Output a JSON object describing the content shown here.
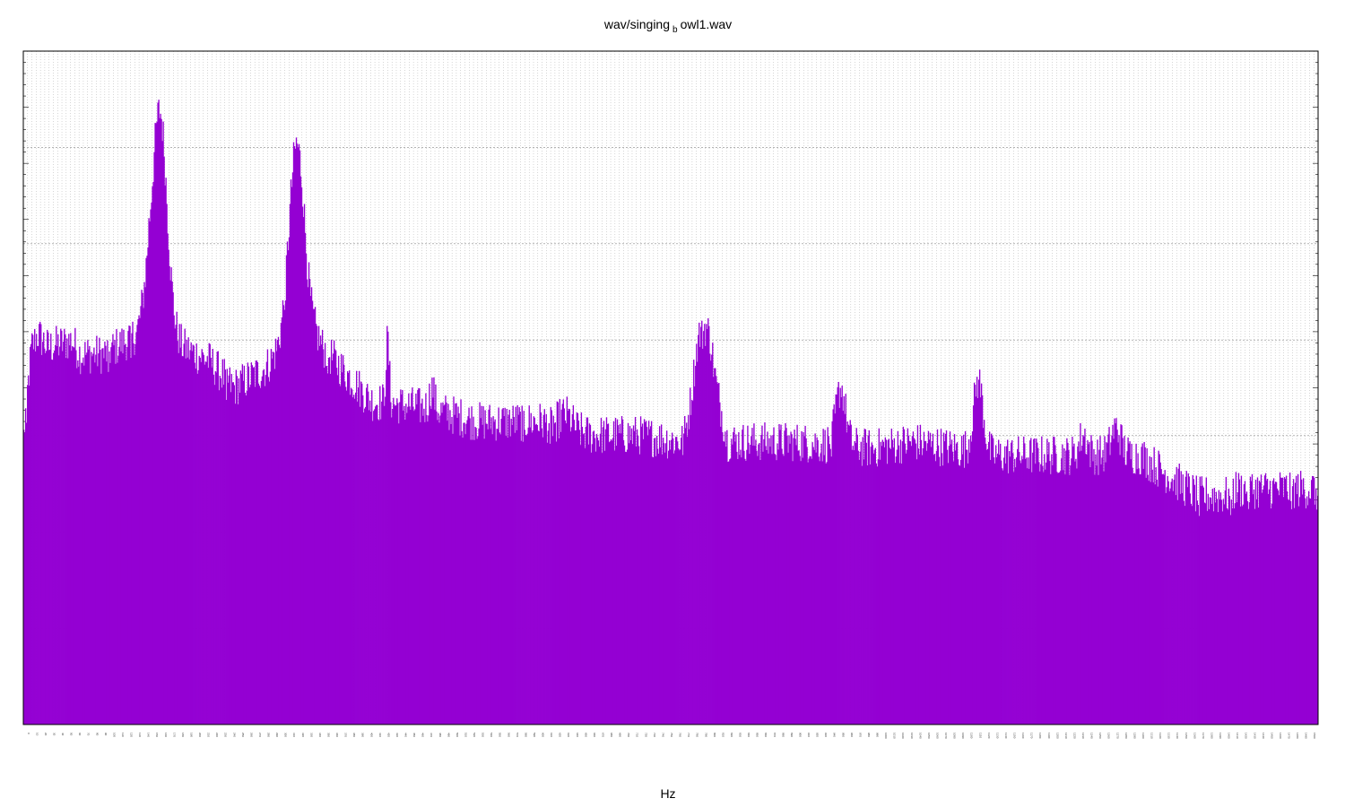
{
  "chart_data": {
    "type": "bar",
    "title_prefix": "wav/singing",
    "title_sub": "b",
    "title_suffix": "owl1.wav",
    "xlabel": "Hz",
    "ylabel": "",
    "x_range": [
      0,
      1600
    ],
    "y_range": [
      0,
      1
    ],
    "log_y": true,
    "grid": true,
    "legend": "none",
    "bar_color": "#9400d3",
    "envelope": [
      [
        0,
        0.42
      ],
      [
        4,
        0.48
      ],
      [
        10,
        0.56
      ],
      [
        18,
        0.58
      ],
      [
        30,
        0.56
      ],
      [
        60,
        0.57
      ],
      [
        70,
        0.55
      ],
      [
        100,
        0.55
      ],
      [
        140,
        0.58
      ],
      [
        155,
        0.65
      ],
      [
        180,
        0.57
      ],
      [
        230,
        0.54
      ],
      [
        260,
        0.5
      ],
      [
        300,
        0.53
      ],
      [
        330,
        0.58
      ],
      [
        345,
        0.62
      ],
      [
        370,
        0.56
      ],
      [
        430,
        0.48
      ],
      [
        500,
        0.47
      ],
      [
        560,
        0.45
      ],
      [
        640,
        0.45
      ],
      [
        700,
        0.43
      ],
      [
        760,
        0.43
      ],
      [
        815,
        0.42
      ],
      [
        835,
        0.52
      ],
      [
        850,
        0.54
      ],
      [
        870,
        0.42
      ],
      [
        950,
        0.42
      ],
      [
        1050,
        0.41
      ],
      [
        1100,
        0.42
      ],
      [
        1150,
        0.41
      ],
      [
        1200,
        0.4
      ],
      [
        1260,
        0.4
      ],
      [
        1300,
        0.4
      ],
      [
        1380,
        0.4
      ],
      [
        1450,
        0.34
      ],
      [
        1490,
        0.34
      ],
      [
        1500,
        0.35
      ]
    ],
    "peaks": [
      {
        "hz": 169,
        "value": 0.91,
        "width": 9
      },
      {
        "hz": 337,
        "value": 0.86,
        "width": 9
      },
      {
        "hz": 450,
        "value": 0.57,
        "width": 2
      },
      {
        "hz": 505,
        "value": 0.5,
        "width": 3
      },
      {
        "hz": 670,
        "value": 0.46,
        "width": 8
      },
      {
        "hz": 835,
        "value": 0.58,
        "width": 6
      },
      {
        "hz": 842,
        "value": 0.59,
        "width": 6
      },
      {
        "hz": 1010,
        "value": 0.5,
        "width": 6
      },
      {
        "hz": 1180,
        "value": 0.51,
        "width": 6
      },
      {
        "hz": 1350,
        "value": 0.44,
        "width": 6
      },
      {
        "hz": 1310,
        "value": 0.43,
        "width": 5
      }
    ],
    "x_ticks": [
      "0",
      "10",
      "20",
      "30",
      "40",
      "50",
      "60",
      "70",
      "80",
      "90",
      "100",
      "110",
      "120",
      "130",
      "140",
      "150",
      "160",
      "170",
      "180",
      "190",
      "200",
      "210",
      "220",
      "230",
      "240",
      "250",
      "260",
      "270",
      "280",
      "290",
      "300",
      "310",
      "320",
      "330",
      "340",
      "350",
      "360",
      "370",
      "380",
      "390",
      "400",
      "410",
      "420",
      "430",
      "440",
      "450",
      "460",
      "470",
      "480",
      "490",
      "500",
      "510",
      "520",
      "530",
      "540",
      "550",
      "560",
      "570",
      "580",
      "590",
      "600",
      "610",
      "620",
      "630",
      "640",
      "650",
      "660",
      "670",
      "680",
      "690",
      "700",
      "710",
      "720",
      "730",
      "740",
      "750",
      "760",
      "770",
      "780",
      "790",
      "800",
      "810",
      "820",
      "830",
      "840",
      "850",
      "860",
      "870",
      "880",
      "890",
      "900",
      "910",
      "920",
      "930",
      "940",
      "950",
      "960",
      "970",
      "980",
      "990",
      "1000",
      "1010",
      "1020",
      "1030",
      "1040",
      "1050",
      "1060",
      "1070",
      "1080",
      "1090",
      "1100",
      "1110",
      "1120",
      "1130",
      "1140",
      "1150",
      "1160",
      "1170",
      "1180",
      "1190",
      "1200",
      "1210",
      "1220",
      "1230",
      "1240",
      "1250",
      "1260",
      "1270",
      "1280",
      "1290",
      "1300",
      "1310",
      "1320",
      "1330",
      "1340",
      "1350",
      "1360",
      "1370",
      "1380",
      "1390",
      "1400",
      "1410",
      "1420",
      "1430",
      "1440",
      "1450",
      "1460",
      "1470",
      "1480",
      "1490",
      "1500"
    ]
  }
}
